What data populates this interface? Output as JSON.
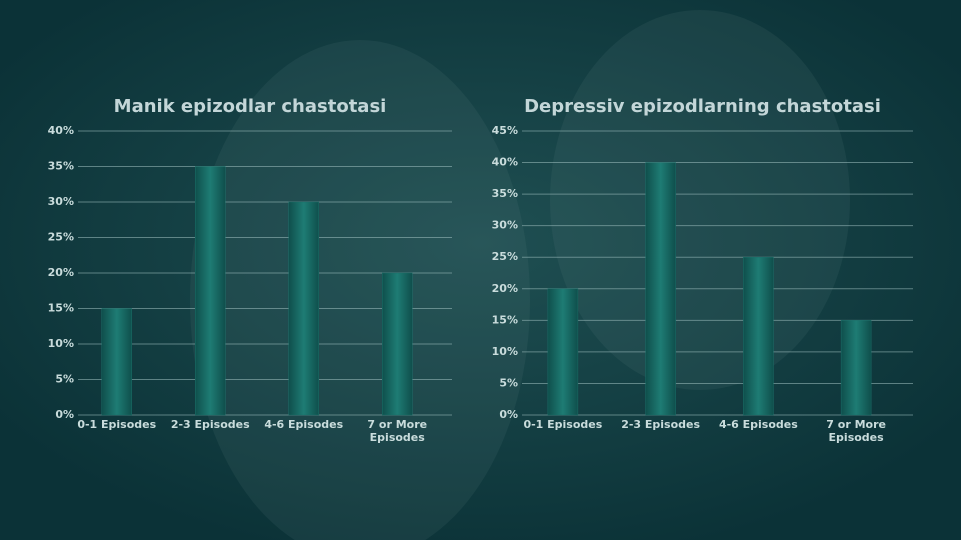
{
  "chart_data": [
    {
      "type": "bar",
      "title": "Manik epizodlar chastotasi",
      "categories": [
        "0-1 Episodes",
        "2-3 Episodes",
        "4-6 Episodes",
        "7 or More Episodes"
      ],
      "values": [
        15,
        35,
        30,
        20
      ],
      "color": "#1b6f69",
      "ylim": [
        0,
        40
      ],
      "yticks": [
        {
          "value": 0,
          "label": "0%"
        },
        {
          "value": 5,
          "label": "5%"
        },
        {
          "value": 10,
          "label": "10%"
        },
        {
          "value": 15,
          "label": "15%"
        },
        {
          "value": 20,
          "label": "20%"
        },
        {
          "value": 25,
          "label": "25%"
        },
        {
          "value": 30,
          "label": "30%"
        },
        {
          "value": 35,
          "label": "35%"
        },
        {
          "value": 40,
          "label": "40%"
        }
      ],
      "grid": true
    },
    {
      "type": "bar",
      "title": "Depressiv epizodlarning chastotasi",
      "categories": [
        "0-1 Episodes",
        "2-3 Episodes",
        "4-6 Episodes",
        "7 or More Episodes"
      ],
      "values": [
        20,
        40,
        25,
        15
      ],
      "color": "#1b6f69",
      "ylim": [
        0,
        45
      ],
      "yticks": [
        {
          "value": 0,
          "label": "0%"
        },
        {
          "value": 5,
          "label": "5%"
        },
        {
          "value": 10,
          "label": "10%"
        },
        {
          "value": 15,
          "label": "15%"
        },
        {
          "value": 20,
          "label": "20%"
        },
        {
          "value": 25,
          "label": "25%"
        },
        {
          "value": 30,
          "label": "30%"
        },
        {
          "value": 35,
          "label": "35%"
        },
        {
          "value": 40,
          "label": "40%"
        },
        {
          "value": 45,
          "label": "45%"
        }
      ],
      "grid": true
    }
  ]
}
